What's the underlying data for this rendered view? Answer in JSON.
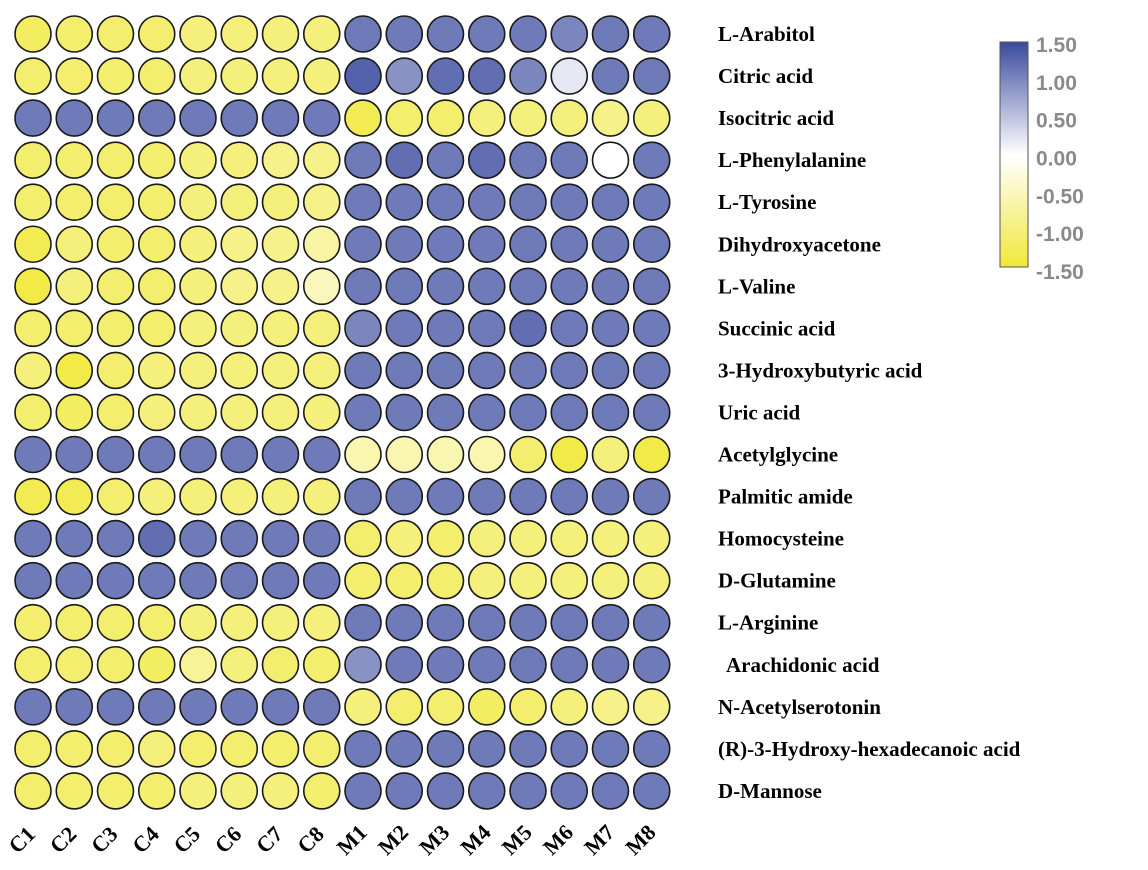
{
  "chart_data": {
    "type": "heatmap",
    "title": "",
    "columns": [
      "C1",
      "C2",
      "C3",
      "C4",
      "C5",
      "C6",
      "C7",
      "C8",
      "M1",
      "M2",
      "M3",
      "M4",
      "M5",
      "M6",
      "M7",
      "M8"
    ],
    "rows": [
      "L-Arabitol",
      "Citric acid",
      "Isocitric acid",
      "L-Phenylalanine",
      "L-Tyrosine",
      "Dihydroxyacetone",
      "L-Valine",
      "Succinic acid",
      "3-Hydroxybutyric acid",
      "Uric acid",
      "Acetylglycine",
      "Palmitic amide",
      "Homocysteine",
      "D-Glutamine",
      "L-Arginine",
      "Arachidonic acid",
      "N-Acetylserotonin",
      "(R)-3-Hydroxy-hexadecanoic acid",
      "D-Mannose"
    ],
    "values": [
      [
        -1.2,
        -1.1,
        -1.1,
        -1.1,
        -1.0,
        -1.0,
        -1.0,
        -1.0,
        1.1,
        1.1,
        1.1,
        1.1,
        1.1,
        1.0,
        1.1,
        1.1
      ],
      [
        -1.1,
        -1.1,
        -1.1,
        -1.1,
        -1.0,
        -1.0,
        -1.0,
        -1.0,
        1.3,
        0.9,
        1.2,
        1.2,
        1.0,
        0.2,
        1.1,
        1.1
      ],
      [
        1.1,
        1.1,
        1.1,
        1.1,
        1.1,
        1.1,
        1.1,
        1.1,
        -1.3,
        -1.1,
        -1.1,
        -1.0,
        -1.0,
        -1.0,
        -0.9,
        -1.0
      ],
      [
        -1.1,
        -1.1,
        -1.1,
        -1.1,
        -1.0,
        -1.0,
        -0.9,
        -0.9,
        1.1,
        1.2,
        1.1,
        1.2,
        1.1,
        1.1,
        0.0,
        1.1
      ],
      [
        -1.1,
        -1.1,
        -1.1,
        -1.1,
        -1.0,
        -1.0,
        -1.0,
        -0.9,
        1.1,
        1.1,
        1.1,
        1.1,
        1.1,
        1.1,
        1.1,
        1.1
      ],
      [
        -1.3,
        -1.0,
        -1.1,
        -1.1,
        -1.0,
        -0.9,
        -0.9,
        -0.7,
        1.1,
        1.1,
        1.1,
        1.1,
        1.1,
        1.1,
        1.1,
        1.1
      ],
      [
        -1.4,
        -1.0,
        -1.1,
        -1.1,
        -1.0,
        -0.9,
        -0.9,
        -0.5,
        1.1,
        1.1,
        1.1,
        1.1,
        1.1,
        1.1,
        1.1,
        1.1
      ],
      [
        -1.1,
        -1.1,
        -1.1,
        -1.1,
        -1.0,
        -1.0,
        -1.0,
        -1.0,
        1.0,
        1.1,
        1.1,
        1.1,
        1.2,
        1.1,
        1.1,
        1.1
      ],
      [
        -1.0,
        -1.4,
        -1.1,
        -1.0,
        -1.0,
        -1.0,
        -1.0,
        -1.0,
        1.1,
        1.1,
        1.1,
        1.1,
        1.1,
        1.1,
        1.1,
        1.1
      ],
      [
        -1.1,
        -1.2,
        -1.1,
        -1.0,
        -1.0,
        -1.0,
        -1.0,
        -1.0,
        1.1,
        1.1,
        1.1,
        1.1,
        1.1,
        1.1,
        1.1,
        1.1
      ],
      [
        1.1,
        1.1,
        1.1,
        1.1,
        1.1,
        1.1,
        1.1,
        1.1,
        -0.6,
        -0.6,
        -0.6,
        -0.6,
        -1.1,
        -1.4,
        -1.0,
        -1.4
      ],
      [
        -1.3,
        -1.3,
        -1.1,
        -1.0,
        -1.0,
        -1.0,
        -1.0,
        -1.0,
        1.1,
        1.1,
        1.1,
        1.1,
        1.1,
        1.1,
        1.1,
        1.1
      ],
      [
        1.1,
        1.1,
        1.1,
        1.2,
        1.1,
        1.1,
        1.1,
        1.1,
        -1.1,
        -1.0,
        -1.1,
        -1.0,
        -1.0,
        -1.0,
        -1.0,
        -1.0
      ],
      [
        1.1,
        1.1,
        1.1,
        1.1,
        1.1,
        1.1,
        1.1,
        1.1,
        -1.1,
        -1.1,
        -1.1,
        -1.0,
        -1.0,
        -1.0,
        -1.0,
        -1.0
      ],
      [
        -1.1,
        -1.1,
        -1.1,
        -1.1,
        -1.0,
        -1.0,
        -1.0,
        -1.0,
        1.1,
        1.1,
        1.1,
        1.1,
        1.1,
        1.1,
        1.1,
        1.1
      ],
      [
        -1.1,
        -1.1,
        -1.1,
        -1.2,
        -0.8,
        -1.0,
        -1.1,
        -1.1,
        0.9,
        1.1,
        1.1,
        1.1,
        1.1,
        1.1,
        1.1,
        1.1
      ],
      [
        1.1,
        1.1,
        1.1,
        1.1,
        1.1,
        1.1,
        1.1,
        1.1,
        -1.0,
        -1.1,
        -1.1,
        -1.2,
        -1.1,
        -1.0,
        -0.9,
        -0.9
      ],
      [
        -1.1,
        -1.1,
        -1.1,
        -1.0,
        -1.1,
        -1.1,
        -1.1,
        -1.1,
        1.1,
        1.1,
        1.1,
        1.1,
        1.1,
        1.1,
        1.1,
        1.1
      ],
      [
        -1.1,
        -1.1,
        -1.1,
        -1.1,
        -1.0,
        -1.0,
        -1.0,
        -1.1,
        1.1,
        1.1,
        1.1,
        1.1,
        1.1,
        1.1,
        1.1,
        1.1
      ]
    ],
    "color_scale": {
      "min": -1.5,
      "max": 1.5,
      "low_color": "#f0e83a",
      "mid_color": "#ffffff",
      "high_color": "#3a4a9e",
      "ticks": [
        "1.50",
        "1.00",
        "0.50",
        "0.00",
        "-0.50",
        "-1.00",
        "-1.50"
      ],
      "position": "top-right"
    },
    "marker_shape": "circle",
    "grid": false,
    "legend": "colorbar"
  }
}
